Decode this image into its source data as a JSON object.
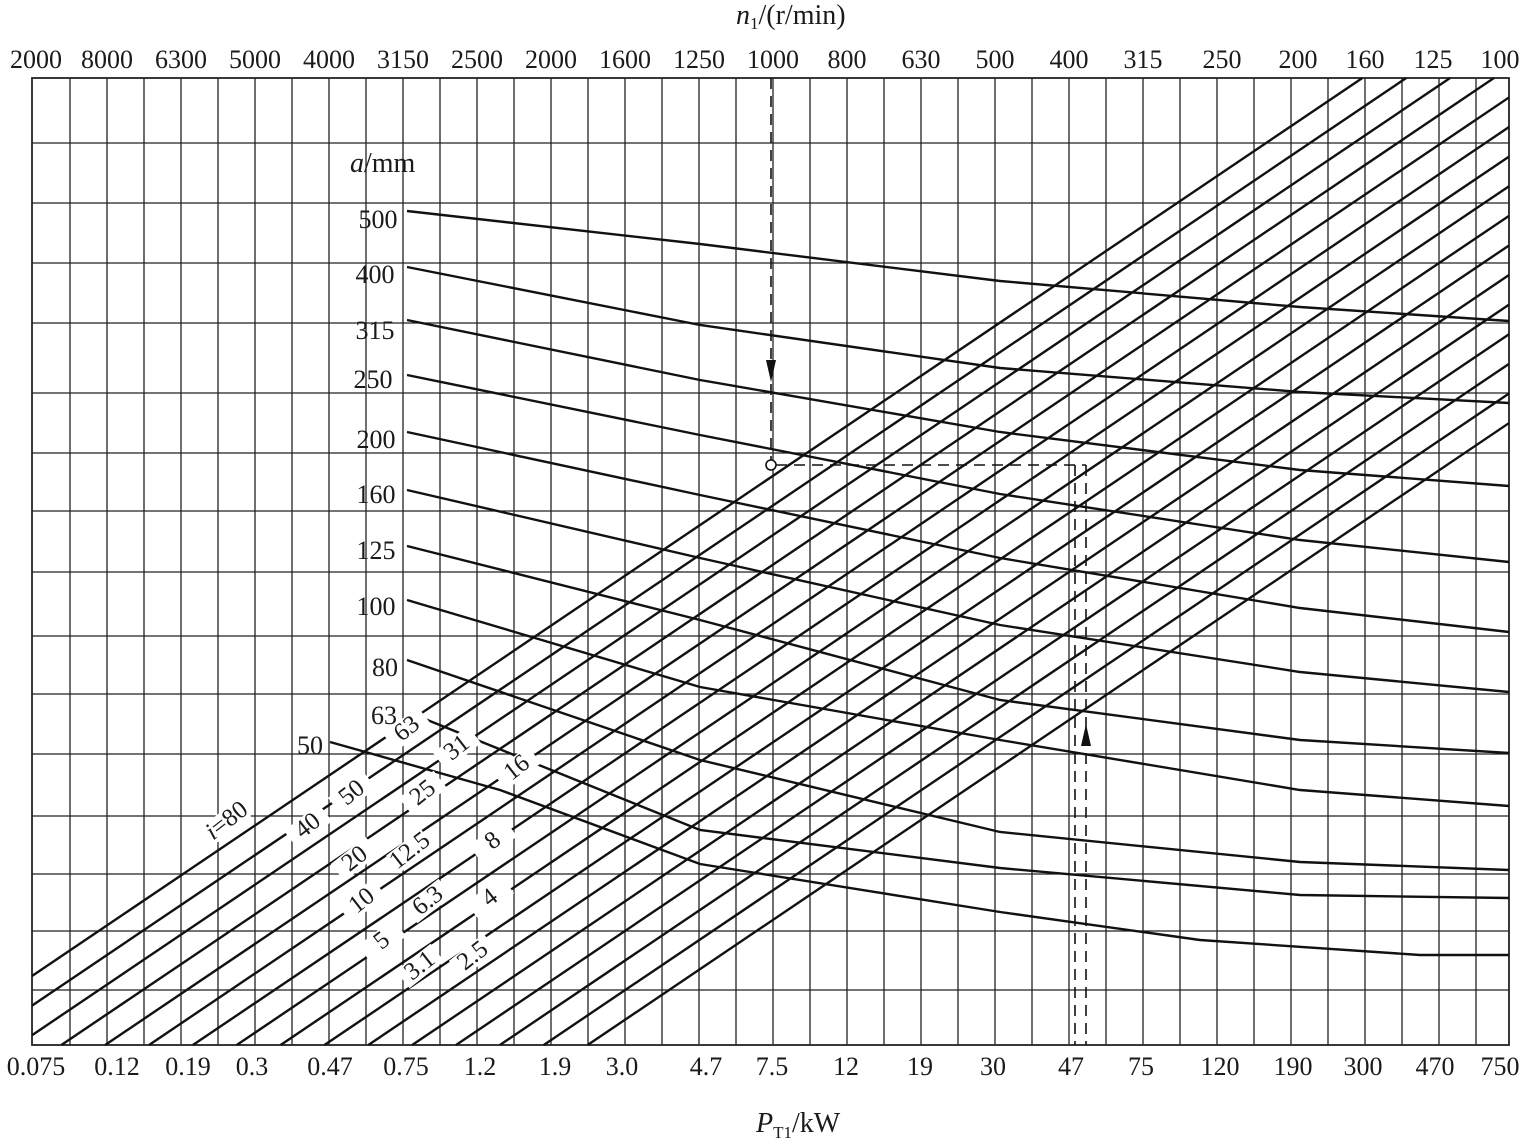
{
  "chart_data": {
    "type": "line",
    "title": "",
    "top_axis": {
      "label_var": "n",
      "label_sub": "1",
      "label_unit": "/(r/min)",
      "ticks": [
        "2000",
        "8000",
        "6300",
        "5000",
        "4000",
        "3150",
        "2500",
        "2000",
        "1600",
        "1250",
        "1000",
        "800",
        "630",
        "500",
        "400",
        "315",
        "250",
        "200",
        "160",
        "125",
        "100"
      ]
    },
    "bottom_axis": {
      "label_var": "P",
      "label_sub": "T1",
      "label_unit": "/kW",
      "scale": "log",
      "ticks": [
        "0.075",
        "0.12",
        "0.19",
        "0.3",
        "0.47",
        "0.75",
        "1.2",
        "1.9",
        "3.0",
        "4.7",
        "7.5",
        "12",
        "19",
        "30",
        "47",
        "75",
        "120",
        "190",
        "300",
        "470",
        "750"
      ]
    },
    "inner_axis": {
      "label_var": "a",
      "label_unit": "/mm",
      "scale": "log",
      "ticks": [
        "500",
        "400",
        "315",
        "250",
        "200",
        "160",
        "125",
        "100",
        "80",
        "63",
        "50"
      ]
    },
    "ratio_series": [
      {
        "name": "i=80",
        "label": "i=80"
      },
      {
        "name": "63",
        "label": "63"
      },
      {
        "name": "50",
        "label": "50"
      },
      {
        "name": "40",
        "label": "40"
      },
      {
        "name": "31",
        "label": "31"
      },
      {
        "name": "25",
        "label": "25"
      },
      {
        "name": "20",
        "label": "20"
      },
      {
        "name": "16",
        "label": "16"
      },
      {
        "name": "12.5",
        "label": "12.5"
      },
      {
        "name": "10",
        "label": "10"
      },
      {
        "name": "8",
        "label": "8"
      },
      {
        "name": "6.3",
        "label": "6.3"
      },
      {
        "name": "5",
        "label": "5"
      },
      {
        "name": "4",
        "label": "4"
      },
      {
        "name": "3.1",
        "label": "3.1"
      },
      {
        "name": "2.5",
        "label": "2.5"
      }
    ],
    "distance_series": [
      {
        "name": "500",
        "values": [
          [
            0.75,
            500
          ],
          [
            750,
            315
          ]
        ]
      },
      {
        "name": "400",
        "values": [
          [
            0.75,
            400
          ],
          [
            750,
            230
          ]
        ]
      },
      {
        "name": "315",
        "values": [
          [
            0.75,
            315
          ],
          [
            750,
            160
          ]
        ]
      },
      {
        "name": "250",
        "values": [
          [
            0.75,
            250
          ],
          [
            750,
            118
          ]
        ]
      },
      {
        "name": "200",
        "values": [
          [
            0.75,
            200
          ],
          [
            750,
            90
          ]
        ]
      },
      {
        "name": "160",
        "values": [
          [
            0.75,
            160
          ],
          [
            750,
            69
          ]
        ]
      },
      {
        "name": "125",
        "values": [
          [
            0.75,
            125
          ],
          [
            750,
            54
          ]
        ]
      },
      {
        "name": "100",
        "values": [
          [
            0.75,
            100
          ],
          [
            750,
            44
          ]
        ]
      },
      {
        "name": "80",
        "values": [
          [
            0.75,
            80
          ],
          [
            750,
            36
          ]
        ]
      },
      {
        "name": "63",
        "values": [
          [
            0.75,
            63
          ],
          [
            750,
            30
          ]
        ]
      },
      {
        "name": "50",
        "values": [
          [
            0.75,
            50
          ],
          [
            750,
            25
          ]
        ]
      }
    ],
    "example": {
      "n1": "1000",
      "P_T1": "47",
      "note": "dashed guide lines: n1 = 1000 r/min down to the ratio line; P_T1 ≈ 47 kW up to the distance curve"
    },
    "grid": true
  }
}
